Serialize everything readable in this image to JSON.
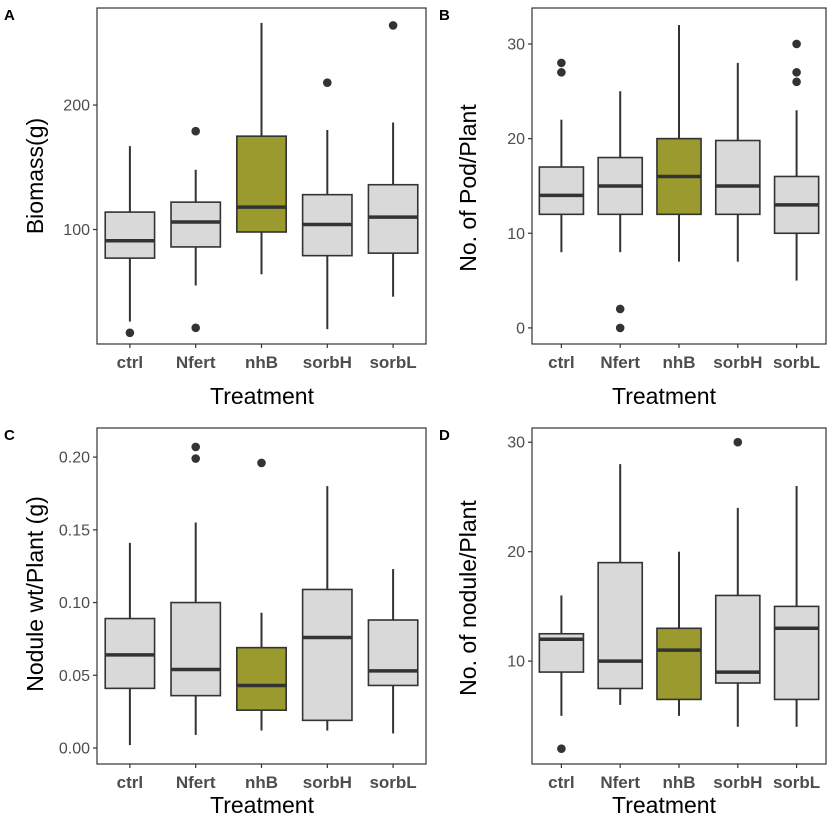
{
  "colors": {
    "default_box": "#d9d9d9",
    "highlight_box": "#9a9a2e",
    "ink": "#333333"
  },
  "chart_data": [
    {
      "panel": "A",
      "type": "boxplot",
      "xlabel": "Treatment",
      "ylabel": "Biomass(g)",
      "categories": [
        "ctrl",
        "Nfert",
        "nhB",
        "sorbH",
        "sorbL"
      ],
      "highlight": "nhB",
      "ylim": [
        8,
        278
      ],
      "yticks": [
        100,
        200
      ],
      "boxes": [
        {
          "lo": 26,
          "q1": 77,
          "med": 91,
          "q3": 114,
          "hi": 167,
          "outliers": [
            17
          ]
        },
        {
          "lo": 55,
          "q1": 86,
          "med": 106,
          "q3": 122,
          "hi": 148,
          "outliers": [
            179,
            21
          ]
        },
        {
          "lo": 64,
          "q1": 98,
          "med": 118,
          "q3": 175,
          "hi": 266,
          "outliers": []
        },
        {
          "lo": 20,
          "q1": 79,
          "med": 104,
          "q3": 128,
          "hi": 180,
          "outliers": [
            218
          ]
        },
        {
          "lo": 46,
          "q1": 81,
          "med": 110,
          "q3": 136,
          "hi": 186,
          "outliers": [
            264
          ]
        }
      ]
    },
    {
      "panel": "B",
      "type": "boxplot",
      "xlabel": "Treatment",
      "ylabel": "No. of Pod/Plant",
      "categories": [
        "ctrl",
        "Nfert",
        "nhB",
        "sorbH",
        "sorbL"
      ],
      "highlight": "nhB",
      "ylim": [
        -1.7,
        33.8
      ],
      "yticks": [
        0,
        10,
        20,
        30
      ],
      "boxes": [
        {
          "lo": 8,
          "q1": 12,
          "med": 14,
          "q3": 17,
          "hi": 22,
          "outliers": [
            27,
            28
          ]
        },
        {
          "lo": 8,
          "q1": 12,
          "med": 15,
          "q3": 18,
          "hi": 25,
          "outliers": [
            2,
            0
          ]
        },
        {
          "lo": 7,
          "q1": 12,
          "med": 16,
          "q3": 20,
          "hi": 32,
          "outliers": []
        },
        {
          "lo": 7,
          "q1": 12,
          "med": 15,
          "q3": 19.8,
          "hi": 28,
          "outliers": []
        },
        {
          "lo": 5,
          "q1": 10,
          "med": 13,
          "q3": 16,
          "hi": 23,
          "outliers": [
            26,
            27,
            30
          ]
        }
      ]
    },
    {
      "panel": "C",
      "type": "boxplot",
      "xlabel": "Treatment",
      "ylabel": "Nodule wt/Plant (g)",
      "categories": [
        "ctrl",
        "Nfert",
        "nhB",
        "sorbH",
        "sorbL"
      ],
      "highlight": "nhB",
      "ylim": [
        -0.011,
        0.22
      ],
      "yticks": [
        0.0,
        0.05,
        0.1,
        0.15,
        0.2
      ],
      "ytick_labels": [
        "0.00",
        "0.05",
        "0.10",
        "0.15",
        "0.20"
      ],
      "boxes": [
        {
          "lo": 0.002,
          "q1": 0.041,
          "med": 0.064,
          "q3": 0.089,
          "hi": 0.141,
          "outliers": []
        },
        {
          "lo": 0.009,
          "q1": 0.036,
          "med": 0.054,
          "q3": 0.1,
          "hi": 0.155,
          "outliers": [
            0.199,
            0.207
          ]
        },
        {
          "lo": 0.012,
          "q1": 0.026,
          "med": 0.043,
          "q3": 0.069,
          "hi": 0.093,
          "outliers": [
            0.196
          ]
        },
        {
          "lo": 0.012,
          "q1": 0.019,
          "med": 0.076,
          "q3": 0.109,
          "hi": 0.18,
          "outliers": []
        },
        {
          "lo": 0.01,
          "q1": 0.043,
          "med": 0.053,
          "q3": 0.088,
          "hi": 0.123,
          "outliers": []
        }
      ]
    },
    {
      "panel": "D",
      "type": "boxplot",
      "xlabel": "Treatment",
      "ylabel": "No. of nodule/Plant",
      "categories": [
        "ctrl",
        "Nfert",
        "nhB",
        "sorbH",
        "sorbL"
      ],
      "highlight": "nhB",
      "ylim": [
        0.6,
        31.3
      ],
      "yticks": [
        10,
        20,
        30
      ],
      "boxes": [
        {
          "lo": 5,
          "q1": 9,
          "med": 12,
          "q3": 12.5,
          "hi": 16,
          "outliers": [
            2
          ]
        },
        {
          "lo": 6,
          "q1": 7.5,
          "med": 10,
          "q3": 19,
          "hi": 28,
          "outliers": []
        },
        {
          "lo": 5,
          "q1": 6.5,
          "med": 11,
          "q3": 13,
          "hi": 20,
          "outliers": []
        },
        {
          "lo": 4,
          "q1": 8,
          "med": 9,
          "q3": 16,
          "hi": 24,
          "outliers": [
            30
          ]
        },
        {
          "lo": 4,
          "q1": 6.5,
          "med": 13,
          "q3": 15,
          "hi": 26,
          "outliers": []
        }
      ]
    }
  ]
}
